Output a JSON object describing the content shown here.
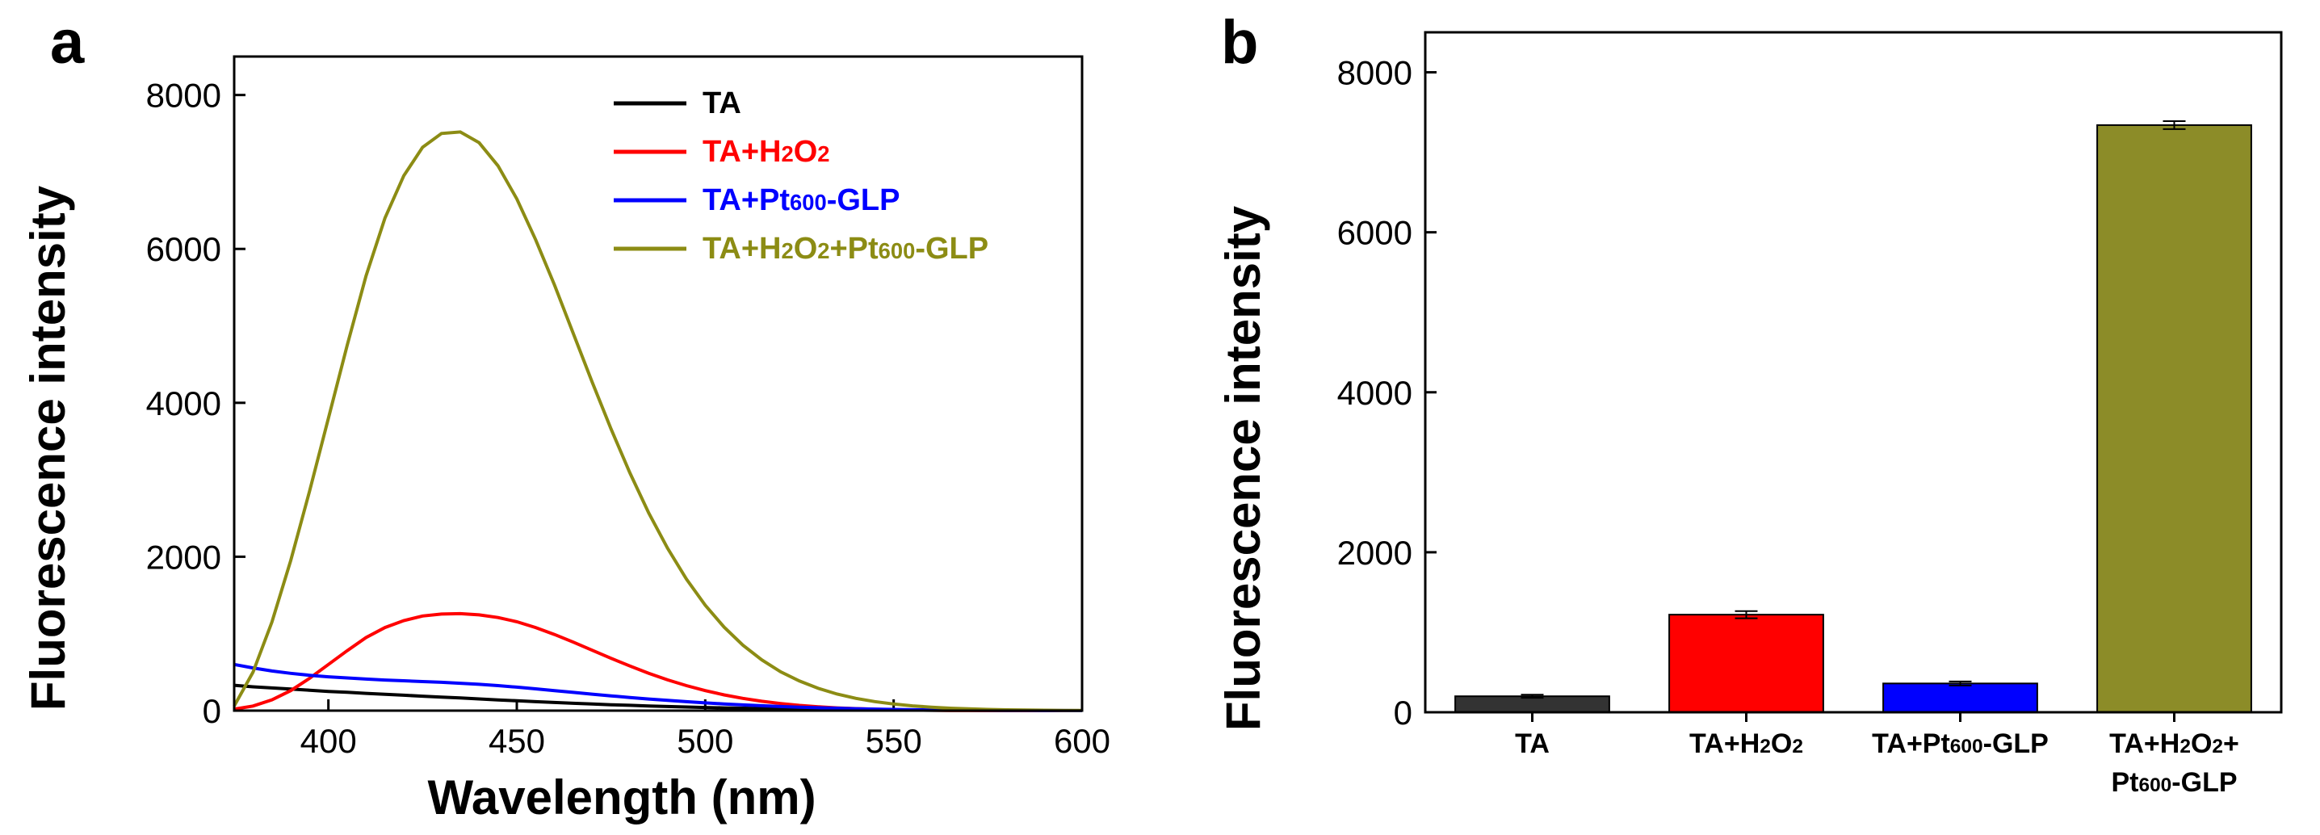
{
  "chart_data": [
    {
      "panel": "a",
      "type": "line",
      "xlabel": "Wavelength (nm)",
      "ylabel": "Fluorescence intensity",
      "xlim": [
        375,
        600
      ],
      "ylim": [
        0,
        8500
      ],
      "xticks": [
        400,
        450,
        500,
        550,
        600
      ],
      "yticks": [
        0,
        2000,
        4000,
        6000,
        8000
      ],
      "x": [
        375,
        380,
        385,
        390,
        395,
        400,
        405,
        410,
        415,
        420,
        425,
        430,
        435,
        440,
        445,
        450,
        455,
        460,
        465,
        470,
        475,
        480,
        485,
        490,
        495,
        500,
        505,
        510,
        515,
        520,
        525,
        530,
        535,
        540,
        545,
        550,
        555,
        560,
        565,
        570,
        575,
        580,
        585,
        590,
        595,
        600
      ],
      "series": [
        {
          "name": "TA",
          "label_parts": [
            [
              "TA",
              ""
            ]
          ],
          "color": "#000000",
          "values": [
            330,
            310,
            295,
            280,
            265,
            250,
            238,
            225,
            212,
            200,
            188,
            176,
            165,
            152,
            140,
            128,
            117,
            106,
            96,
            86,
            77,
            69,
            61,
            54,
            47,
            41,
            36,
            31,
            27,
            23,
            19,
            16,
            13,
            11,
            9,
            7,
            5,
            4,
            3,
            2,
            2,
            1,
            1,
            0,
            0,
            0
          ]
        },
        {
          "name": "TA+H2O2",
          "label_parts": [
            [
              "TA+H",
              ""
            ],
            [
              "2",
              "sub"
            ],
            [
              "O",
              ""
            ],
            [
              "2",
              "sub"
            ]
          ],
          "color": "#ff0000",
          "values": [
            20,
            60,
            140,
            260,
            420,
            600,
            780,
            950,
            1080,
            1170,
            1230,
            1255,
            1260,
            1245,
            1210,
            1155,
            1080,
            990,
            890,
            785,
            680,
            580,
            485,
            400,
            325,
            260,
            205,
            160,
            122,
            92,
            68,
            50,
            36,
            26,
            18,
            12,
            8,
            5,
            3,
            2,
            1,
            1,
            0,
            0,
            0,
            0
          ]
        },
        {
          "name": "TA+Pt600-GLP",
          "label_parts": [
            [
              "TA+Pt",
              ""
            ],
            [
              "600",
              "sub"
            ],
            [
              "-GLP",
              ""
            ]
          ],
          "color": "#0000ff",
          "values": [
            600,
            555,
            515,
            485,
            460,
            440,
            425,
            410,
            398,
            388,
            378,
            368,
            356,
            342,
            325,
            305,
            283,
            260,
            237,
            214,
            192,
            171,
            151,
            133,
            116,
            101,
            87,
            75,
            64,
            54,
            45,
            38,
            31,
            25,
            20,
            16,
            12,
            9,
            7,
            5,
            4,
            3,
            2,
            1,
            1,
            0
          ]
        },
        {
          "name": "TA+H2O2+Pt600-GLP",
          "label_parts": [
            [
              "TA+H",
              ""
            ],
            [
              "2",
              "sub"
            ],
            [
              "O",
              ""
            ],
            [
              "2",
              "sub"
            ],
            [
              "+Pt",
              ""
            ],
            [
              "600",
              "sub"
            ],
            [
              "-GLP",
              ""
            ]
          ],
          "color": "#8c8c14",
          "values": [
            60,
            500,
            1150,
            1950,
            2850,
            3800,
            4750,
            5650,
            6400,
            6950,
            7320,
            7500,
            7520,
            7380,
            7080,
            6650,
            6120,
            5530,
            4900,
            4270,
            3660,
            3090,
            2570,
            2110,
            1710,
            1370,
            1085,
            850,
            660,
            505,
            385,
            290,
            215,
            160,
            118,
            86,
            62,
            45,
            32,
            23,
            16,
            11,
            8,
            5,
            3,
            2
          ]
        }
      ],
      "legend_position": "top-right"
    },
    {
      "panel": "b",
      "type": "bar",
      "ylabel": "Fluorescence intensity",
      "ylim": [
        0,
        8500
      ],
      "yticks": [
        0,
        2000,
        4000,
        6000,
        8000
      ],
      "categories": [
        "TA",
        "TA+H2O2",
        "TA+Pt600-GLP",
        "TA+H2O2+Pt600-GLP"
      ],
      "category_lines": [
        [
          [
            [
              "TA",
              ""
            ]
          ]
        ],
        [
          [
            [
              "TA+H",
              ""
            ],
            [
              "2",
              "sub"
            ],
            [
              "O",
              ""
            ],
            [
              "2",
              "sub"
            ]
          ]
        ],
        [
          [
            [
              "TA+Pt",
              ""
            ],
            [
              "600",
              "sub"
            ],
            [
              "-GLP",
              ""
            ]
          ]
        ],
        [
          [
            [
              "TA+H",
              ""
            ],
            [
              "2",
              "sub"
            ],
            [
              "O",
              ""
            ],
            [
              "2",
              "sub"
            ],
            [
              "+",
              ""
            ]
          ],
          [
            [
              "Pt",
              ""
            ],
            [
              "600",
              "sub"
            ],
            [
              "-GLP",
              ""
            ]
          ]
        ]
      ],
      "values": [
        200,
        1220,
        360,
        7340
      ],
      "errors": [
        20,
        45,
        25,
        50
      ],
      "colors": [
        "#333333",
        "#ff0000",
        "#0000ff",
        "#8c8c28"
      ]
    }
  ]
}
